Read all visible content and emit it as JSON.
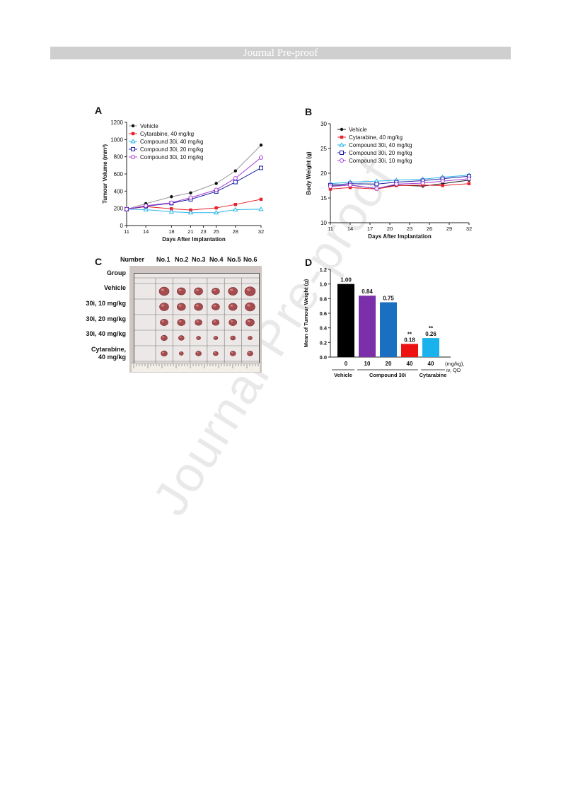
{
  "header": {
    "text": "Journal Pre-proof"
  },
  "watermark": "Journal Pre-proof",
  "panels": {
    "a": "A",
    "b": "B",
    "c": "C",
    "d": "D"
  },
  "chart_data": [
    {
      "id": "A",
      "type": "line",
      "xlabel": "Days After Implantation",
      "ylabel": "Tumour  Volume  (mm³)",
      "x": [
        11,
        14,
        18,
        21,
        25,
        28,
        32
      ],
      "xticks": [
        11,
        14,
        18,
        21,
        23,
        25,
        28,
        32
      ],
      "xlim": [
        11,
        32
      ],
      "yticks": [
        0,
        200,
        400,
        600,
        800,
        1000,
        1200
      ],
      "ylim": [
        0,
        1200
      ],
      "legend": "top-left",
      "series": [
        {
          "name": "Vehicle",
          "color": "#111111",
          "marker": "dot",
          "line": "#9a9a9a",
          "values": [
            190,
            255,
            335,
            380,
            490,
            635,
            935
          ]
        },
        {
          "name": "Cytarabine, 40 mg/kg",
          "color": "#e8202a",
          "marker": "square-filled",
          "line": "#e8202a",
          "values": [
            190,
            220,
            195,
            180,
            205,
            245,
            305
          ]
        },
        {
          "name": "Compound 30i, 40 mg/kg",
          "color": "#2ab6e8",
          "marker": "triangle",
          "line": "#2ab6e8",
          "values": [
            190,
            185,
            160,
            150,
            150,
            185,
            190
          ]
        },
        {
          "name": "Compound 30i, 20 mg/kg",
          "color": "#1a1aa8",
          "marker": "square-open",
          "line": "#1a1aa8",
          "values": [
            190,
            225,
            260,
            305,
            395,
            505,
            670
          ]
        },
        {
          "name": "Compound 30i, 10 mg/kg",
          "color": "#a43bd0",
          "marker": "circle-open",
          "line": "#a43bd0",
          "values": [
            190,
            230,
            265,
            325,
            415,
            550,
            790
          ]
        }
      ]
    },
    {
      "id": "B",
      "type": "line",
      "xlabel": "Days After Implantation",
      "ylabel": "Body  Weight  (g)",
      "x": [
        11,
        14,
        18,
        21,
        25,
        28,
        32
      ],
      "xticks": [
        11,
        14,
        17,
        20,
        23,
        26,
        29,
        32
      ],
      "xlim": [
        11,
        32
      ],
      "yticks": [
        10,
        15,
        20,
        25,
        30
      ],
      "ylim": [
        10,
        30
      ],
      "legend": "top-left",
      "series": [
        {
          "name": "Vehicle",
          "color": "#111111",
          "marker": "dot",
          "values": [
            17.4,
            17.6,
            16.9,
            17.6,
            17.4,
            17.9,
            18.6
          ]
        },
        {
          "name": "Cytarabine, 40 mg/kg",
          "color": "#e8202a",
          "marker": "square-filled",
          "values": [
            16.8,
            17.1,
            16.8,
            17.5,
            17.6,
            17.5,
            17.9
          ]
        },
        {
          "name": "Compound 30i, 40 mg/kg",
          "color": "#2ab6e8",
          "marker": "triangle",
          "values": [
            17.9,
            18.2,
            18.4,
            18.6,
            18.8,
            19.2,
            19.6
          ]
        },
        {
          "name": "Compound 30i, 20 mg/kg",
          "color": "#1a1aa8",
          "marker": "square-open",
          "values": [
            17.6,
            17.9,
            17.8,
            18.2,
            18.5,
            18.9,
            19.4
          ]
        },
        {
          "name": "Compound 30i, 10 mg/kg",
          "color": "#a43bd0",
          "marker": "circle-open",
          "values": [
            17.3,
            17.6,
            16.9,
            17.8,
            18.0,
            18.4,
            18.9
          ]
        }
      ]
    },
    {
      "id": "D",
      "type": "bar",
      "ylabel": "Mean of Tumour Weight (g)",
      "categories": [
        "0",
        "10",
        "20",
        "40",
        "40"
      ],
      "values": [
        1.0,
        0.84,
        0.75,
        0.18,
        0.26
      ],
      "value_labels": [
        "1.00",
        "0.84",
        "0.75",
        "0.18",
        "0.26"
      ],
      "significance": [
        "",
        "",
        "",
        "**",
        "**"
      ],
      "colors": [
        "#000000",
        "#7b2fa8",
        "#1b6fc0",
        "#ee1111",
        "#19b2ec"
      ],
      "yticks": [
        "0.0",
        "0.2",
        "0.4",
        "0.6",
        "0.8",
        "1.0",
        "1.2"
      ],
      "ylim": [
        0,
        1.2
      ],
      "dose_unit": "(mg/kg),",
      "route": "iv, QD",
      "groups": [
        "Vehicle",
        "Compound 30i",
        "Cytarabine"
      ]
    }
  ],
  "photo": {
    "columns": [
      "Number",
      "No.1",
      "No.2",
      "No.3",
      "No.4",
      "No.5",
      "No.6"
    ],
    "group_label": "Group",
    "rows": [
      "Vehicle",
      "30i, 10 mg/kg",
      "30i, 20 mg/kg",
      "30i, 40 mg/kg",
      "Cytarabine,\n40 mg/kg"
    ],
    "tumour_sizes": [
      [
        7,
        6,
        6,
        5.5,
        6.5,
        7.5
      ],
      [
        6.5,
        6,
        6,
        5.5,
        6,
        7
      ],
      [
        5.5,
        5.5,
        5,
        5,
        5.5,
        6
      ],
      [
        4.5,
        4,
        3,
        3,
        3.5,
        3
      ],
      [
        4.5,
        3,
        4,
        3.5,
        4,
        4
      ]
    ]
  }
}
